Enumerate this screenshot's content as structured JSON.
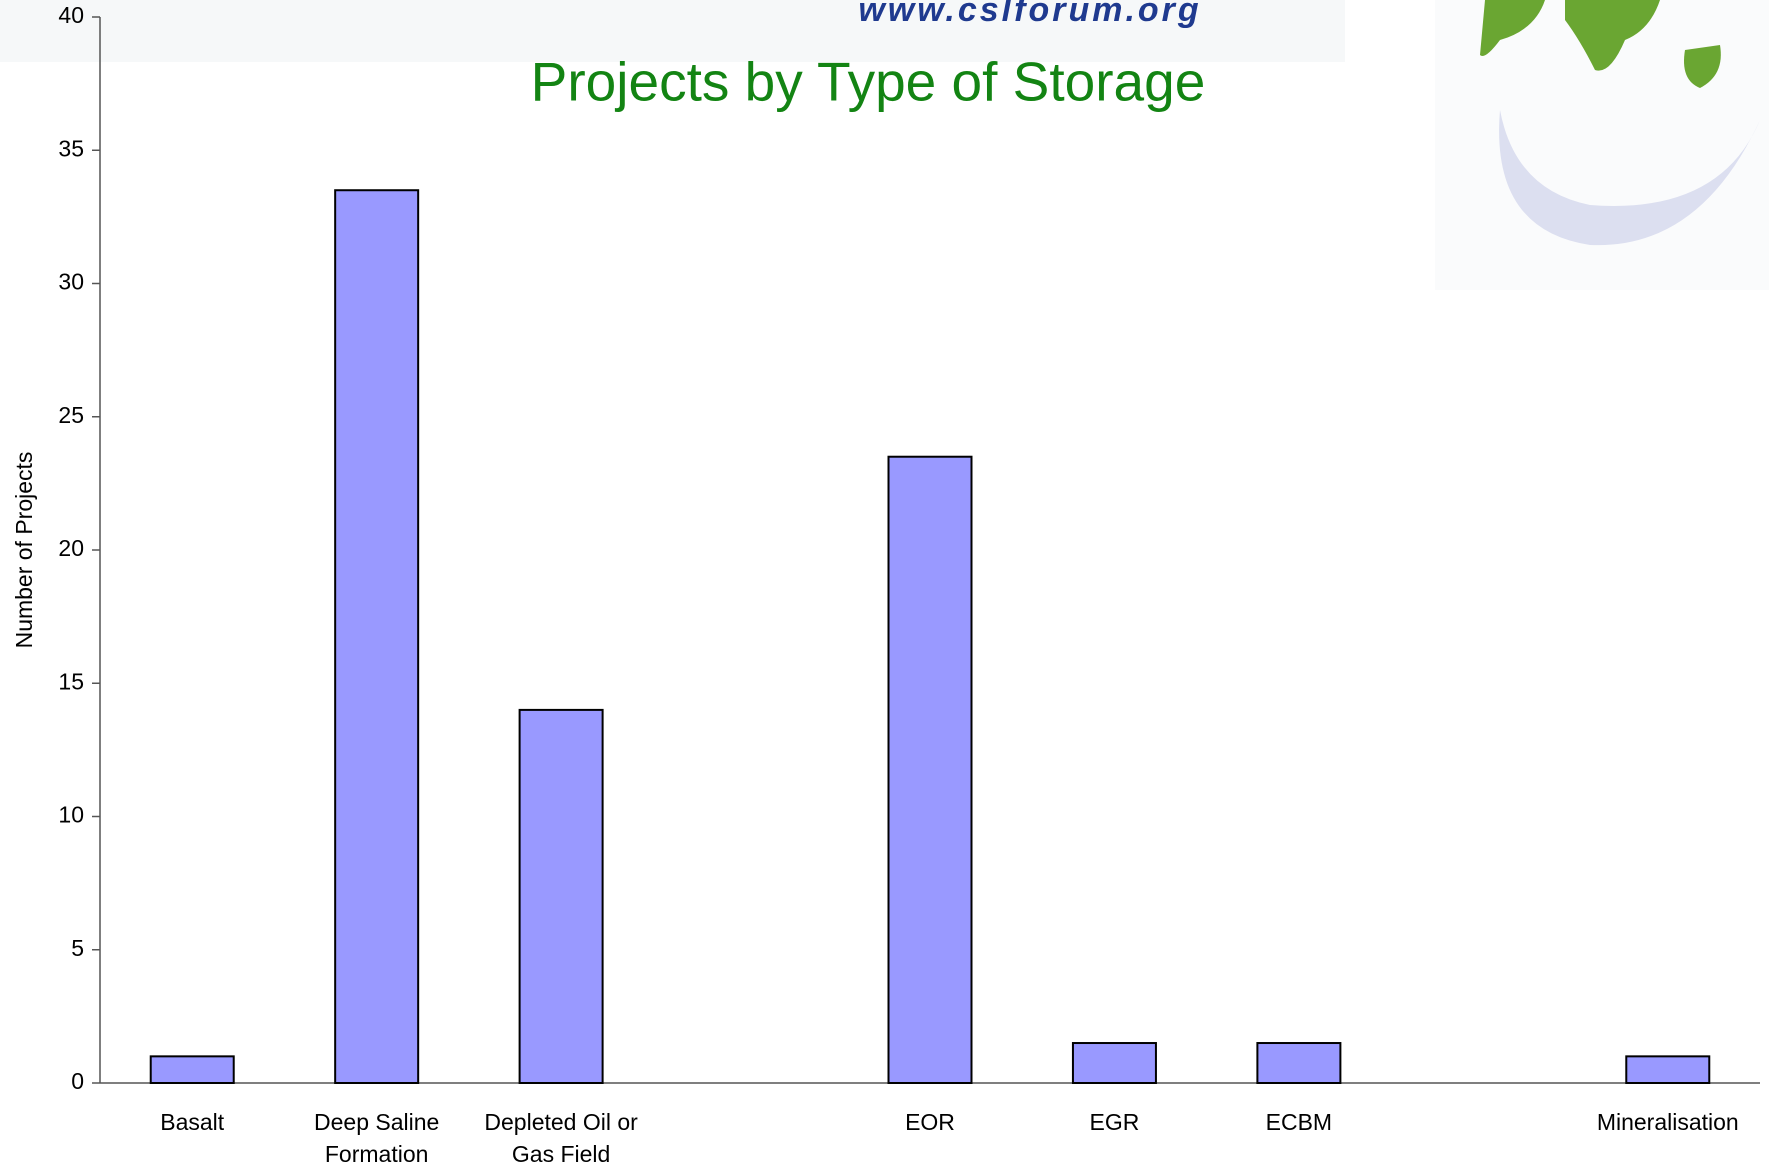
{
  "chart_data": {
    "type": "bar",
    "title": "Projects by Type of Storage",
    "logo_text": "www.cslforum.org",
    "y_label": "Number of Projects",
    "categories": [
      "Basalt",
      "Deep Saline\nFormation",
      "Depleted Oil or\nGas Field",
      null,
      "EOR",
      "EGR",
      "ECBM",
      null,
      "Mineralisation"
    ],
    "values": [
      1,
      33.5,
      14,
      null,
      23.5,
      1.5,
      1.5,
      null,
      1
    ],
    "color": "#9999ff",
    "ylim": [
      0,
      40
    ],
    "yticks": [
      0,
      5,
      10,
      15,
      20,
      25,
      30,
      35,
      40
    ],
    "grid": false
  }
}
